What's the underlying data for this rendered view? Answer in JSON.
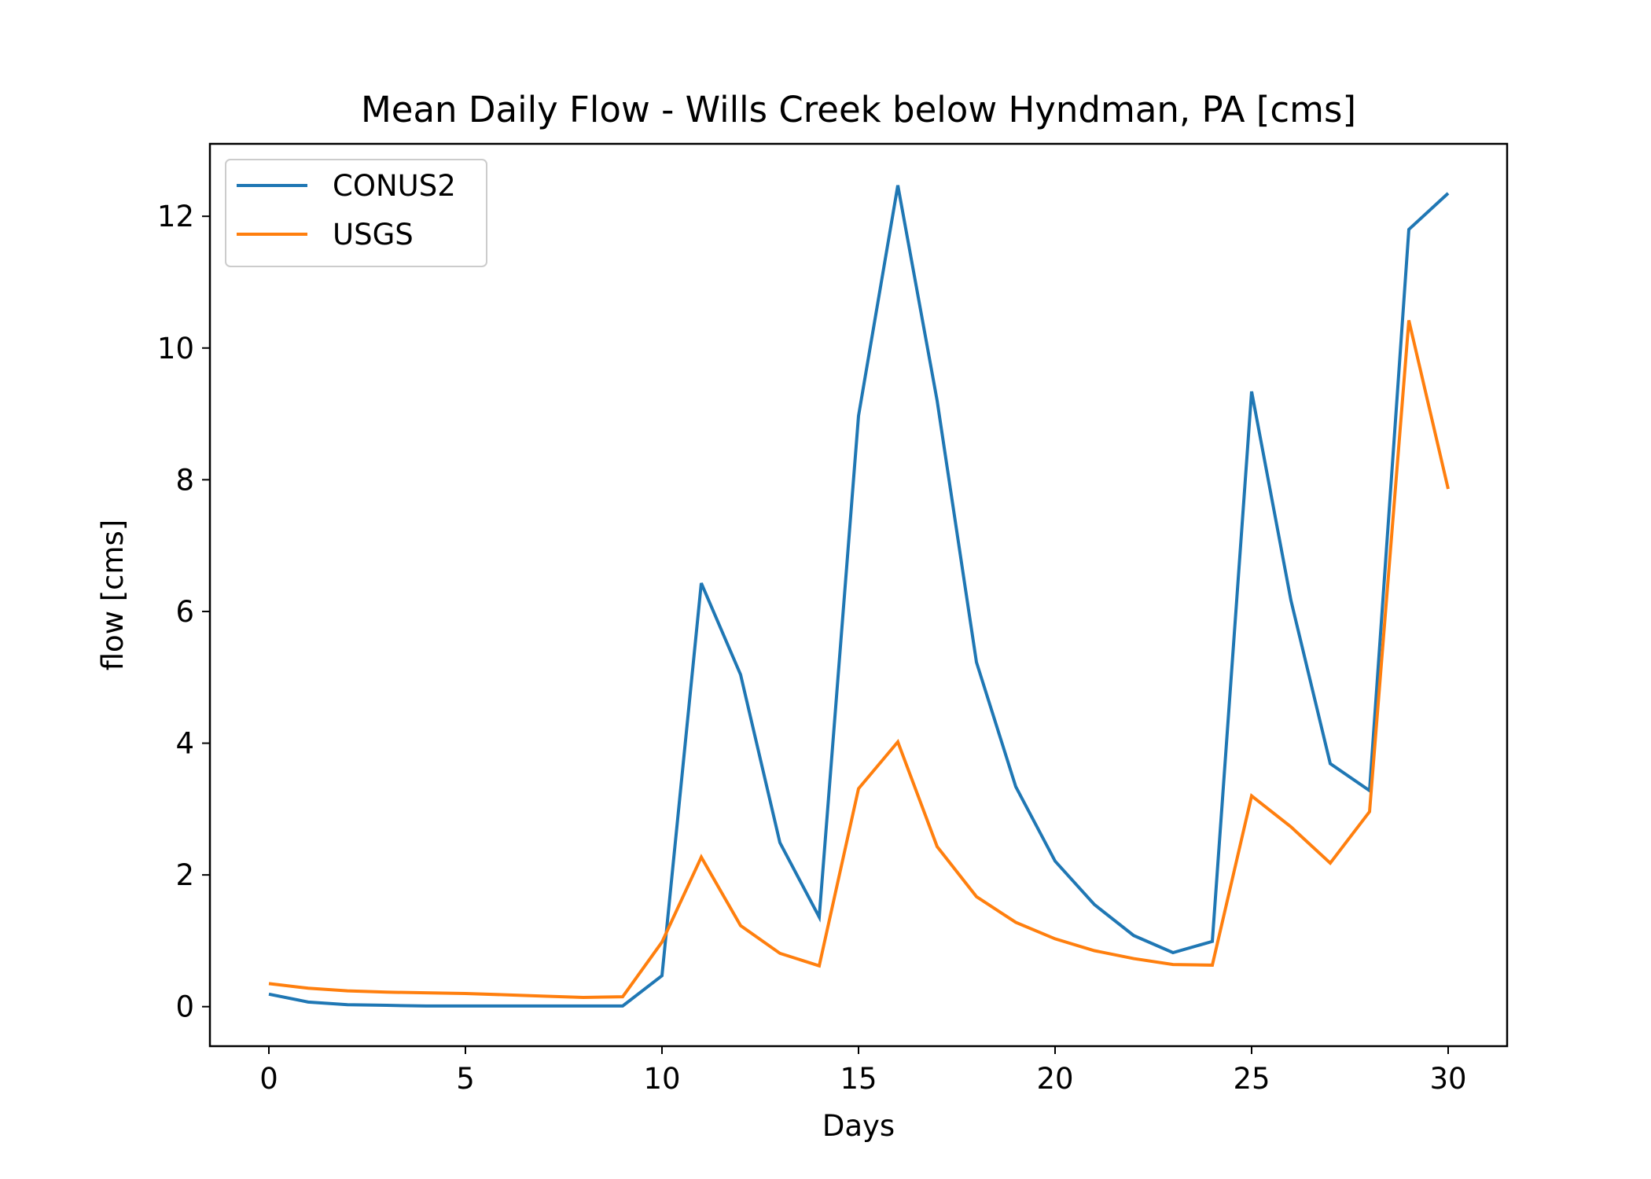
{
  "chart_data": {
    "type": "line",
    "title": "Mean Daily Flow - Wills Creek below Hyndman, PA [cms]",
    "xlabel": "Days",
    "ylabel": "flow [cms]",
    "xlim": [
      -1.5,
      31.5
    ],
    "ylim": [
      -0.6,
      13.1
    ],
    "xticks": [
      0,
      5,
      10,
      15,
      20,
      25,
      30
    ],
    "yticks": [
      0,
      2,
      4,
      6,
      8,
      10,
      12
    ],
    "grid": false,
    "legend_position": "upper-left",
    "x": [
      0,
      1,
      2,
      3,
      4,
      5,
      6,
      7,
      8,
      9,
      10,
      11,
      12,
      13,
      14,
      15,
      16,
      17,
      18,
      19,
      20,
      21,
      22,
      23,
      24,
      25,
      26,
      27,
      28,
      29,
      30
    ],
    "series": [
      {
        "name": "CONUS2",
        "color": "#1f77b4",
        "values": [
          0.19,
          0.07,
          0.03,
          0.02,
          0.01,
          0.01,
          0.01,
          0.01,
          0.01,
          0.01,
          0.47,
          6.43,
          5.04,
          2.49,
          1.36,
          8.97,
          12.47,
          9.2,
          5.23,
          3.34,
          2.21,
          1.55,
          1.08,
          0.82,
          0.99,
          9.34,
          6.17,
          3.69,
          3.28,
          11.8,
          12.35
        ]
      },
      {
        "name": "USGS",
        "color": "#ff7f0e",
        "values": [
          0.35,
          0.28,
          0.24,
          0.22,
          0.21,
          0.2,
          0.18,
          0.16,
          0.14,
          0.15,
          0.98,
          2.27,
          1.23,
          0.81,
          0.62,
          3.31,
          4.02,
          2.43,
          1.67,
          1.28,
          1.03,
          0.85,
          0.73,
          0.64,
          0.63,
          3.2,
          2.73,
          2.18,
          2.96,
          10.42,
          7.86
        ]
      }
    ]
  }
}
